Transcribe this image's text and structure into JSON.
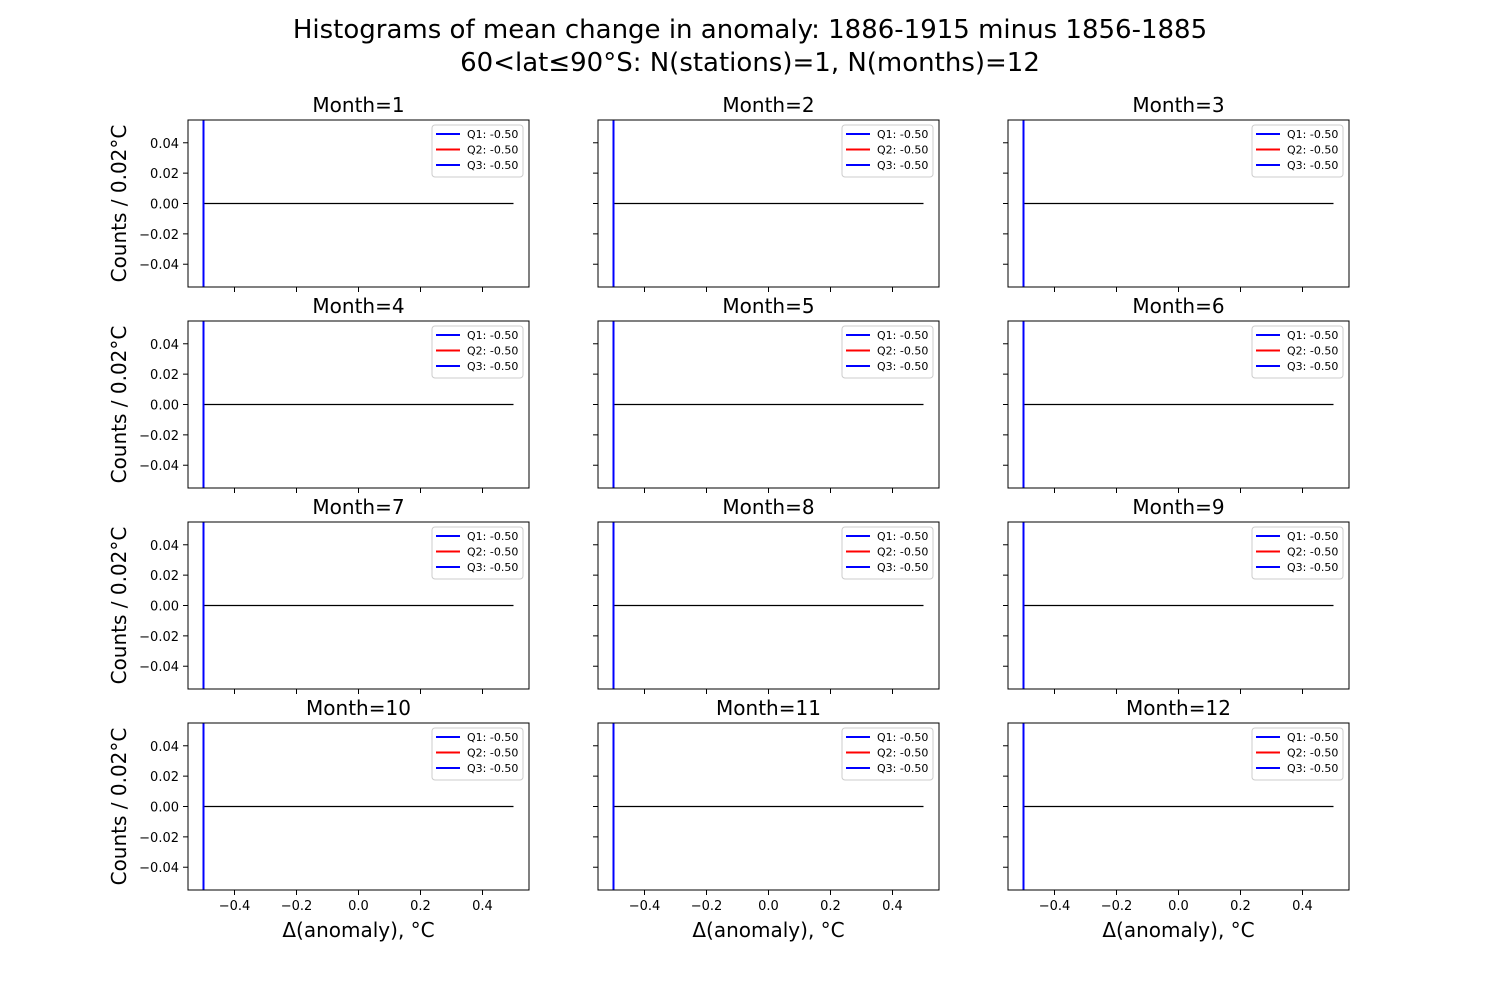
{
  "title_line1": "Histograms of mean change in anomaly: 1886-1915 minus 1856-1885",
  "title_line2": "60<lat≤90°S: N(stations)=1, N(months)=12",
  "chart_data": {
    "type": "histogram-grid",
    "xlabel": "Δ(anomaly), °C",
    "ylabel": "Counts / 0.02°C",
    "xlim": [
      -0.55,
      0.55
    ],
    "ylim": [
      -0.055,
      0.055
    ],
    "xticks": [
      -0.4,
      -0.2,
      0.0,
      0.2,
      0.4
    ],
    "xtick_labels": [
      "−0.4",
      "−0.2",
      "0.0",
      "0.2",
      "0.4"
    ],
    "yticks": [
      0.04,
      0.02,
      0.0,
      -0.02,
      -0.04
    ],
    "ytick_labels": [
      "0.04",
      "0.02",
      "0.00",
      "−0.02",
      "−0.04"
    ],
    "colors": {
      "q1": "#0000ff",
      "q2": "#ff0000",
      "q3": "#0000ff",
      "hist": "#000000"
    },
    "panels": [
      {
        "title": "Month=1",
        "hist_x": [
          -0.5,
          0.5
        ],
        "hist_y": [
          0,
          0
        ],
        "quantiles": [
          {
            "label": "Q1: -0.50",
            "value": -0.5
          },
          {
            "label": "Q2: -0.50",
            "value": -0.5
          },
          {
            "label": "Q3: -0.50",
            "value": -0.5
          }
        ]
      },
      {
        "title": "Month=2",
        "hist_x": [
          -0.5,
          0.5
        ],
        "hist_y": [
          0,
          0
        ],
        "quantiles": [
          {
            "label": "Q1: -0.50",
            "value": -0.5
          },
          {
            "label": "Q2: -0.50",
            "value": -0.5
          },
          {
            "label": "Q3: -0.50",
            "value": -0.5
          }
        ]
      },
      {
        "title": "Month=3",
        "hist_x": [
          -0.5,
          0.5
        ],
        "hist_y": [
          0,
          0
        ],
        "quantiles": [
          {
            "label": "Q1: -0.50",
            "value": -0.5
          },
          {
            "label": "Q2: -0.50",
            "value": -0.5
          },
          {
            "label": "Q3: -0.50",
            "value": -0.5
          }
        ]
      },
      {
        "title": "Month=4",
        "hist_x": [
          -0.5,
          0.5
        ],
        "hist_y": [
          0,
          0
        ],
        "quantiles": [
          {
            "label": "Q1: -0.50",
            "value": -0.5
          },
          {
            "label": "Q2: -0.50",
            "value": -0.5
          },
          {
            "label": "Q3: -0.50",
            "value": -0.5
          }
        ]
      },
      {
        "title": "Month=5",
        "hist_x": [
          -0.5,
          0.5
        ],
        "hist_y": [
          0,
          0
        ],
        "quantiles": [
          {
            "label": "Q1: -0.50",
            "value": -0.5
          },
          {
            "label": "Q2: -0.50",
            "value": -0.5
          },
          {
            "label": "Q3: -0.50",
            "value": -0.5
          }
        ]
      },
      {
        "title": "Month=6",
        "hist_x": [
          -0.5,
          0.5
        ],
        "hist_y": [
          0,
          0
        ],
        "quantiles": [
          {
            "label": "Q1: -0.50",
            "value": -0.5
          },
          {
            "label": "Q2: -0.50",
            "value": -0.5
          },
          {
            "label": "Q3: -0.50",
            "value": -0.5
          }
        ]
      },
      {
        "title": "Month=7",
        "hist_x": [
          -0.5,
          0.5
        ],
        "hist_y": [
          0,
          0
        ],
        "quantiles": [
          {
            "label": "Q1: -0.50",
            "value": -0.5
          },
          {
            "label": "Q2: -0.50",
            "value": -0.5
          },
          {
            "label": "Q3: -0.50",
            "value": -0.5
          }
        ]
      },
      {
        "title": "Month=8",
        "hist_x": [
          -0.5,
          0.5
        ],
        "hist_y": [
          0,
          0
        ],
        "quantiles": [
          {
            "label": "Q1: -0.50",
            "value": -0.5
          },
          {
            "label": "Q2: -0.50",
            "value": -0.5
          },
          {
            "label": "Q3: -0.50",
            "value": -0.5
          }
        ]
      },
      {
        "title": "Month=9",
        "hist_x": [
          -0.5,
          0.5
        ],
        "hist_y": [
          0,
          0
        ],
        "quantiles": [
          {
            "label": "Q1: -0.50",
            "value": -0.5
          },
          {
            "label": "Q2: -0.50",
            "value": -0.5
          },
          {
            "label": "Q3: -0.50",
            "value": -0.5
          }
        ]
      },
      {
        "title": "Month=10",
        "hist_x": [
          -0.5,
          0.5
        ],
        "hist_y": [
          0,
          0
        ],
        "quantiles": [
          {
            "label": "Q1: -0.50",
            "value": -0.5
          },
          {
            "label": "Q2: -0.50",
            "value": -0.5
          },
          {
            "label": "Q3: -0.50",
            "value": -0.5
          }
        ]
      },
      {
        "title": "Month=11",
        "hist_x": [
          -0.5,
          0.5
        ],
        "hist_y": [
          0,
          0
        ],
        "quantiles": [
          {
            "label": "Q1: -0.50",
            "value": -0.5
          },
          {
            "label": "Q2: -0.50",
            "value": -0.5
          },
          {
            "label": "Q3: -0.50",
            "value": -0.5
          }
        ]
      },
      {
        "title": "Month=12",
        "hist_x": [
          -0.5,
          0.5
        ],
        "hist_y": [
          0,
          0
        ],
        "quantiles": [
          {
            "label": "Q1: -0.50",
            "value": -0.5
          },
          {
            "label": "Q2: -0.50",
            "value": -0.5
          },
          {
            "label": "Q3: -0.50",
            "value": -0.5
          }
        ]
      }
    ]
  }
}
